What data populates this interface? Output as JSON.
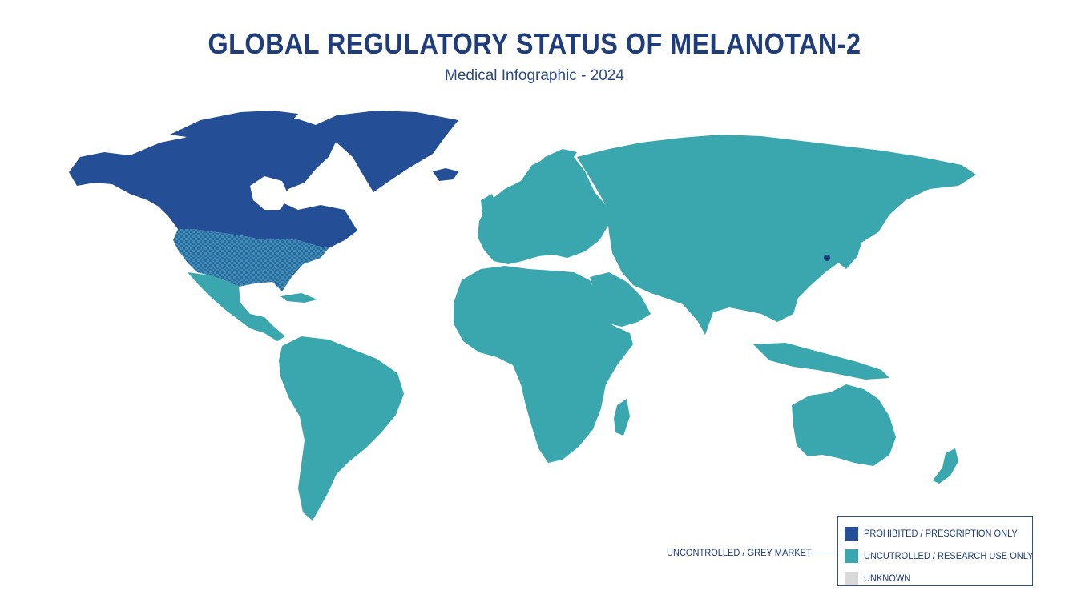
{
  "header": {
    "title": "GLOBAL REGULATORY STATUS OF MELANOTAN-2",
    "subtitle": "Medical Infographic - 2024"
  },
  "colors": {
    "prohibited": "#244e95",
    "uncontrolled": "#3aa6ad",
    "unknown": "#d9d9d9",
    "title": "#1f3d7a"
  },
  "map": {
    "regions": [
      {
        "name": "North America (Canada / Greenland)",
        "status": "prohibited"
      },
      {
        "name": "United States",
        "status": "prohibited",
        "pattern": "crosshatch"
      },
      {
        "name": "Latin America",
        "status": "uncontrolled"
      },
      {
        "name": "Europe",
        "status": "uncontrolled"
      },
      {
        "name": "Africa",
        "status": "uncontrolled"
      },
      {
        "name": "Middle East",
        "status": "uncontrolled"
      },
      {
        "name": "Asia",
        "status": "uncontrolled"
      },
      {
        "name": "Oceania",
        "status": "uncontrolled"
      }
    ]
  },
  "callout": {
    "label": "UNCONTROLLED / GREY MARKET"
  },
  "legend": {
    "items": [
      {
        "label": "PROHIBITED / PRESCRIPTION ONLY",
        "color": "#244e95"
      },
      {
        "label": "UNCUTROLLED / RESEARCH USE ONLY",
        "color": "#3aa6ad"
      },
      {
        "label": "UNKNOWN",
        "color": "#d9d9d9"
      }
    ]
  }
}
